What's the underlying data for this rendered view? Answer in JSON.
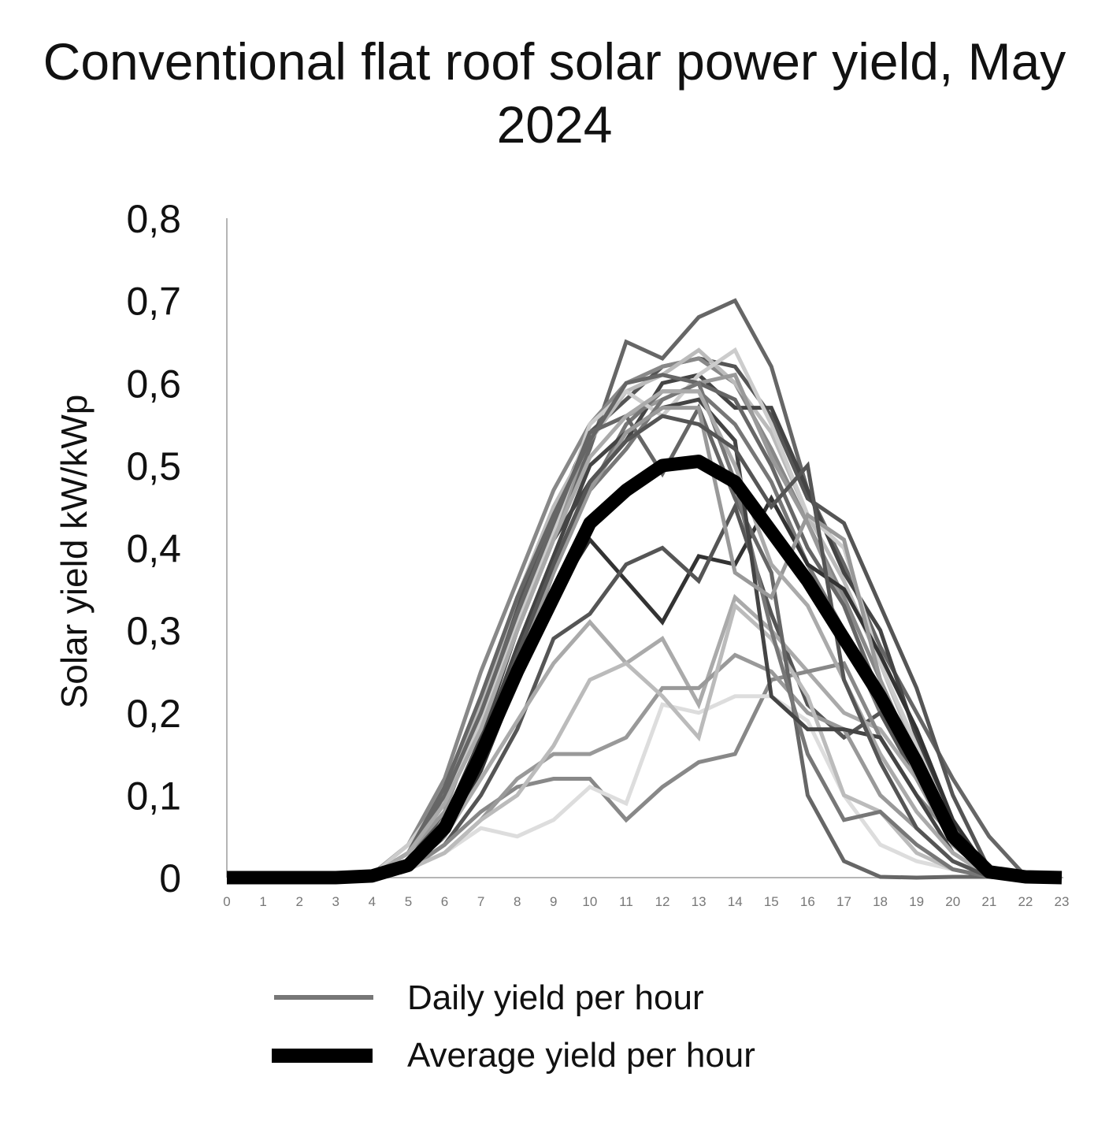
{
  "chart_data": {
    "type": "line",
    "title": "Conventional flat roof solar power yield, May 2024",
    "ylabel": "Solar yield kW/kWp",
    "xlabel": "",
    "ylim": [
      0,
      0.8
    ],
    "xlim": [
      0,
      23
    ],
    "y_tick_labels": [
      "0",
      "0,1",
      "0,2",
      "0,3",
      "0,4",
      "0,5",
      "0,6",
      "0,7",
      "0,8"
    ],
    "x_tick_labels": [
      "0",
      "1",
      "2",
      "3",
      "4",
      "5",
      "6",
      "7",
      "8",
      "9",
      "10",
      "11",
      "12",
      "13",
      "14",
      "15",
      "16",
      "17",
      "18",
      "19",
      "20",
      "21",
      "22",
      "23"
    ],
    "x": [
      0,
      1,
      2,
      3,
      4,
      5,
      6,
      7,
      8,
      9,
      10,
      11,
      12,
      13,
      14,
      15,
      16,
      17,
      18,
      19,
      20,
      21,
      22,
      23
    ],
    "grid": false,
    "legend_position": "bottom",
    "legend": [
      {
        "label": "Daily yield per hour",
        "color": "#777777",
        "style": "thin"
      },
      {
        "label": "Average yield per hour",
        "color": "#000000",
        "style": "thick"
      }
    ],
    "average": {
      "name": "Average yield per hour",
      "color": "#000000",
      "values": [
        0,
        0,
        0,
        0,
        0.002,
        0.015,
        0.06,
        0.15,
        0.25,
        0.34,
        0.43,
        0.47,
        0.5,
        0.505,
        0.48,
        0.42,
        0.36,
        0.29,
        0.22,
        0.14,
        0.05,
        0.007,
        0.001,
        0
      ]
    },
    "daily_series": [
      {
        "color": "#666666",
        "values": [
          0,
          0,
          0,
          0,
          0.003,
          0.03,
          0.09,
          0.18,
          0.3,
          0.42,
          0.52,
          0.65,
          0.63,
          0.68,
          0.7,
          0.62,
          0.47,
          0.38,
          0.28,
          0.2,
          0.12,
          0.05,
          0.002,
          0
        ]
      },
      {
        "color": "#555555",
        "values": [
          0,
          0,
          0,
          0,
          0.002,
          0.02,
          0.08,
          0.2,
          0.33,
          0.44,
          0.54,
          0.58,
          0.62,
          0.63,
          0.62,
          0.56,
          0.46,
          0.43,
          0.33,
          0.23,
          0.1,
          0.01,
          0.001,
          0
        ]
      },
      {
        "color": "#888888",
        "values": [
          0,
          0,
          0,
          0,
          0.004,
          0.04,
          0.12,
          0.25,
          0.36,
          0.47,
          0.55,
          0.6,
          0.62,
          0.63,
          0.6,
          0.52,
          0.43,
          0.34,
          0.24,
          0.14,
          0.05,
          0.005,
          0,
          0
        ]
      },
      {
        "color": "#bbbbbb",
        "values": [
          0,
          0,
          0,
          0,
          0.003,
          0.03,
          0.1,
          0.21,
          0.34,
          0.45,
          0.53,
          0.59,
          0.61,
          0.64,
          0.6,
          0.54,
          0.44,
          0.36,
          0.26,
          0.15,
          0.06,
          0.005,
          0,
          0
        ]
      },
      {
        "color": "#444444",
        "values": [
          0,
          0,
          0,
          0,
          0.001,
          0.02,
          0.07,
          0.17,
          0.3,
          0.41,
          0.48,
          0.53,
          0.6,
          0.61,
          0.57,
          0.57,
          0.47,
          0.37,
          0.3,
          0.17,
          0.07,
          0.006,
          0,
          0
        ]
      },
      {
        "color": "#999999",
        "values": [
          0,
          0,
          0,
          0,
          0.002,
          0.03,
          0.08,
          0.2,
          0.32,
          0.41,
          0.54,
          0.56,
          0.58,
          0.6,
          0.61,
          0.51,
          0.43,
          0.33,
          0.22,
          0.14,
          0.06,
          0.004,
          0,
          0
        ]
      },
      {
        "color": "#777777",
        "values": [
          0,
          0,
          0,
          0,
          0.002,
          0.02,
          0.06,
          0.14,
          0.25,
          0.37,
          0.47,
          0.55,
          0.59,
          0.59,
          0.55,
          0.48,
          0.38,
          0.3,
          0.2,
          0.12,
          0.04,
          0.003,
          0,
          0
        ]
      },
      {
        "color": "#cccccc",
        "values": [
          0,
          0,
          0,
          0,
          0.003,
          0.04,
          0.1,
          0.19,
          0.31,
          0.42,
          0.55,
          0.59,
          0.56,
          0.61,
          0.64,
          0.55,
          0.44,
          0.4,
          0.26,
          0.16,
          0.06,
          0.004,
          0,
          0
        ]
      },
      {
        "color": "#666666",
        "values": [
          0,
          0,
          0,
          0,
          0.002,
          0.03,
          0.11,
          0.22,
          0.34,
          0.44,
          0.53,
          0.6,
          0.61,
          0.6,
          0.58,
          0.5,
          0.4,
          0.33,
          0.22,
          0.15,
          0.06,
          0.005,
          0,
          0
        ]
      },
      {
        "color": "#333333",
        "values": [
          0,
          0,
          0,
          0,
          0.001,
          0.01,
          0.05,
          0.13,
          0.24,
          0.34,
          0.41,
          0.36,
          0.31,
          0.39,
          0.38,
          0.46,
          0.38,
          0.35,
          0.27,
          0.18,
          0.07,
          0.005,
          0,
          0
        ]
      },
      {
        "color": "#555555",
        "values": [
          0,
          0,
          0,
          0,
          0.001,
          0.01,
          0.04,
          0.1,
          0.18,
          0.29,
          0.32,
          0.38,
          0.4,
          0.36,
          0.45,
          0.32,
          0.21,
          0.17,
          0.2,
          0.12,
          0.05,
          0.004,
          0,
          0
        ]
      },
      {
        "color": "#aaaaaa",
        "values": [
          0,
          0,
          0,
          0,
          0.002,
          0.02,
          0.05,
          0.12,
          0.19,
          0.26,
          0.31,
          0.26,
          0.29,
          0.21,
          0.34,
          0.3,
          0.25,
          0.2,
          0.18,
          0.12,
          0.05,
          0.003,
          0,
          0
        ]
      },
      {
        "color": "#888888",
        "values": [
          0,
          0,
          0,
          0,
          0.001,
          0.01,
          0.04,
          0.08,
          0.11,
          0.12,
          0.12,
          0.07,
          0.11,
          0.14,
          0.15,
          0.24,
          0.25,
          0.26,
          0.17,
          0.1,
          0.05,
          0.003,
          0,
          0
        ]
      },
      {
        "color": "#999999",
        "values": [
          0,
          0,
          0,
          0,
          0.001,
          0.01,
          0.03,
          0.07,
          0.12,
          0.15,
          0.15,
          0.17,
          0.23,
          0.23,
          0.27,
          0.25,
          0.2,
          0.18,
          0.1,
          0.06,
          0.02,
          0.002,
          0,
          0
        ]
      },
      {
        "color": "#dddddd",
        "values": [
          0,
          0,
          0,
          0,
          0.001,
          0.01,
          0.03,
          0.06,
          0.05,
          0.07,
          0.11,
          0.09,
          0.21,
          0.2,
          0.22,
          0.22,
          0.19,
          0.1,
          0.04,
          0.02,
          0.01,
          0.001,
          0,
          0
        ]
      },
      {
        "color": "#bbbbbb",
        "values": [
          0,
          0,
          0,
          0,
          0.001,
          0.01,
          0.03,
          0.07,
          0.1,
          0.16,
          0.24,
          0.26,
          0.22,
          0.17,
          0.33,
          0.29,
          0.22,
          0.1,
          0.08,
          0.03,
          0.01,
          0.001,
          0,
          0
        ]
      },
      {
        "color": "#666666",
        "values": [
          0,
          0,
          0,
          0,
          0.002,
          0.03,
          0.1,
          0.2,
          0.32,
          0.43,
          0.54,
          0.56,
          0.49,
          0.57,
          0.46,
          0.37,
          0.1,
          0.02,
          0.001,
          0,
          0.001,
          0.001,
          0,
          0
        ]
      },
      {
        "color": "#777777",
        "values": [
          0,
          0,
          0,
          0,
          0.002,
          0.02,
          0.07,
          0.15,
          0.27,
          0.38,
          0.47,
          0.52,
          0.58,
          0.6,
          0.48,
          0.3,
          0.15,
          0.07,
          0.08,
          0.04,
          0.01,
          0.001,
          0,
          0
        ]
      },
      {
        "color": "#444444",
        "values": [
          0,
          0,
          0,
          0,
          0.002,
          0.02,
          0.07,
          0.16,
          0.28,
          0.39,
          0.5,
          0.54,
          0.57,
          0.58,
          0.53,
          0.22,
          0.18,
          0.18,
          0.17,
          0.1,
          0.03,
          0.002,
          0,
          0
        ]
      },
      {
        "color": "#999999",
        "values": [
          0,
          0,
          0,
          0,
          0.002,
          0.02,
          0.06,
          0.14,
          0.26,
          0.37,
          0.47,
          0.54,
          0.57,
          0.57,
          0.37,
          0.34,
          0.44,
          0.41,
          0.24,
          0.12,
          0.04,
          0.003,
          0,
          0
        ]
      },
      {
        "color": "#aaaaaa",
        "values": [
          0,
          0,
          0,
          0,
          0.002,
          0.03,
          0.09,
          0.18,
          0.3,
          0.41,
          0.51,
          0.56,
          0.59,
          0.59,
          0.5,
          0.38,
          0.33,
          0.24,
          0.15,
          0.08,
          0.03,
          0.002,
          0,
          0
        ]
      },
      {
        "color": "#555555",
        "values": [
          0,
          0,
          0,
          0,
          0.002,
          0.02,
          0.07,
          0.15,
          0.27,
          0.38,
          0.48,
          0.53,
          0.56,
          0.55,
          0.52,
          0.45,
          0.5,
          0.24,
          0.14,
          0.06,
          0.02,
          0.001,
          0,
          0
        ]
      }
    ]
  }
}
